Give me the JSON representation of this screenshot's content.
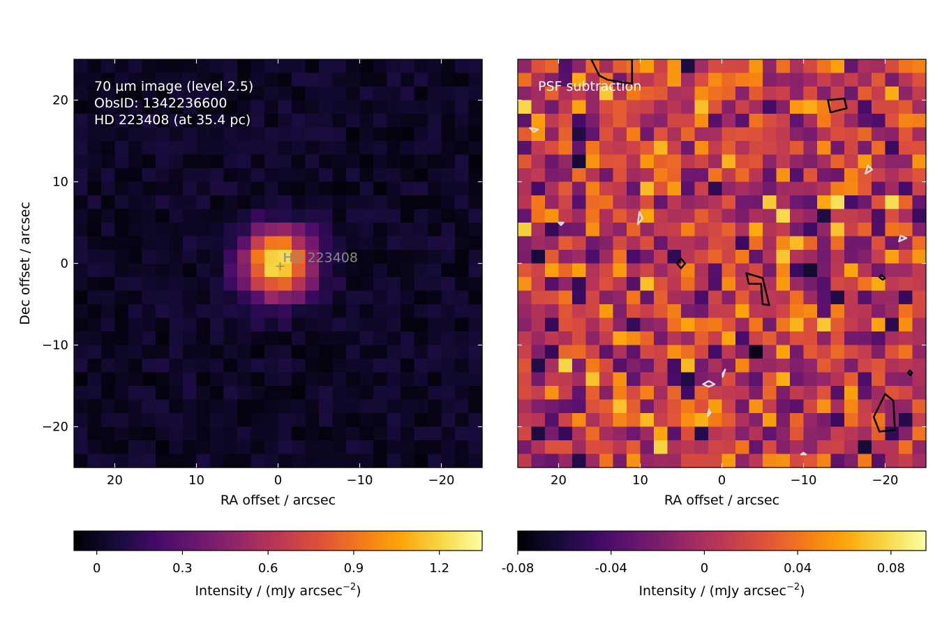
{
  "chart_data": [
    {
      "type": "heatmap",
      "annotations": [
        "70 µm image (level 2.5)",
        "ObsID: 1342236600",
        "HD 223408 (at 35.4 pc)"
      ],
      "source_label": "HD 223408",
      "xlabel": "RA offset / arcsec",
      "ylabel": "Dec offset / arcsec",
      "xlim": [
        25,
        -25
      ],
      "ylim": [
        -25,
        25
      ],
      "xticks": [
        20,
        10,
        0,
        -10,
        -20
      ],
      "xtick_labels": [
        "20",
        "10",
        "0",
        "−10",
        "−20"
      ],
      "yticks": [
        20,
        10,
        0,
        -10,
        -20
      ],
      "ytick_labels": [
        "20",
        "10",
        "0",
        "−10",
        "−20"
      ],
      "colormap": "inferno",
      "colorbar": {
        "label": "Intensity / (mJy arcsec",
        "label_sup": "−2",
        "label_close": ")",
        "vmin": -0.08,
        "vmax": 1.35,
        "ticks": [
          0,
          0.3,
          0.6,
          0.9,
          1.2
        ],
        "tick_labels": [
          "0",
          "0.3",
          "0.6",
          "0.9",
          "1.2"
        ]
      },
      "source": {
        "x": 0,
        "y": 0,
        "peak": 1.3,
        "sigma_arcsec": 2.9
      }
    },
    {
      "type": "heatmap",
      "annotations": [
        "PSF subtraction"
      ],
      "xlabel": "RA offset / arcsec",
      "xlim": [
        25,
        -25
      ],
      "ylim": [
        -25,
        25
      ],
      "xticks": [
        20,
        10,
        0,
        -10,
        -20
      ],
      "xtick_labels": [
        "20",
        "10",
        "0",
        "−10",
        "−20"
      ],
      "colormap": "inferno",
      "colorbar": {
        "label": "Intensity / (mJy arcsec",
        "label_sup": "−2",
        "label_close": ")",
        "vmin": -0.08,
        "vmax": 0.095,
        "ticks": [
          -0.08,
          -0.04,
          0,
          0.04,
          0.08
        ],
        "tick_labels": [
          "-0.08",
          "-0.04",
          "0",
          "0.04",
          "0.08"
        ]
      },
      "positive_contours": [
        [
          [
            16,
            25
          ],
          [
            15,
            23
          ],
          [
            14,
            22.5
          ],
          [
            11,
            22
          ],
          [
            11,
            25
          ]
        ],
        [
          [
            -13,
            20
          ],
          [
            -15,
            20.2
          ],
          [
            -15.3,
            19
          ],
          [
            -13.3,
            18.5
          ]
        ],
        [
          [
            5,
            0.6
          ],
          [
            4.5,
            0
          ],
          [
            5,
            -0.6
          ],
          [
            5.5,
            0
          ]
        ],
        [
          [
            -3,
            -1.2
          ],
          [
            -5,
            -1.8
          ],
          [
            -5.8,
            -5.1
          ],
          [
            -5,
            -5
          ],
          [
            -4.8,
            -2.5
          ],
          [
            -3.3,
            -2.5
          ]
        ],
        [
          [
            -19.5,
            -1.4
          ],
          [
            -20,
            -1.8
          ],
          [
            -19.7,
            -2
          ],
          [
            -19.3,
            -1.7
          ]
        ],
        [
          [
            -23,
            -13.1
          ],
          [
            -23.3,
            -13.4
          ],
          [
            -23.1,
            -13.7
          ],
          [
            -22.8,
            -13.4
          ]
        ],
        [
          [
            -20,
            -16
          ],
          [
            -21,
            -16.8
          ],
          [
            -21.2,
            -20.4
          ],
          [
            -19.3,
            -20.6
          ],
          [
            -18.6,
            -18.8
          ]
        ]
      ],
      "negative_contours": [
        [
          [
            23.5,
            16.6
          ],
          [
            22.5,
            16.4
          ],
          [
            23,
            16.1
          ]
        ],
        [
          [
            -17.9,
            12
          ],
          [
            -18.4,
            11.5
          ],
          [
            -17.6,
            11
          ]
        ],
        [
          [
            20,
            5
          ],
          [
            19.4,
            5
          ],
          [
            19.7,
            4.7
          ]
        ],
        [
          [
            10.1,
            6.3
          ],
          [
            9.7,
            5.5
          ],
          [
            10.3,
            4.8
          ]
        ],
        [
          [
            -21.9,
            3.4
          ],
          [
            -22.6,
            3.1
          ],
          [
            -21.7,
            2.7
          ]
        ],
        [
          [
            -0.1,
            -13.5
          ],
          [
            -0.4,
            -13
          ],
          [
            -0.1,
            -13.9
          ]
        ],
        [
          [
            2.3,
            -14.8
          ],
          [
            1.6,
            -14.4
          ],
          [
            0.9,
            -14.8
          ],
          [
            1.6,
            -15.1
          ]
        ],
        [
          [
            1.6,
            -17.9
          ],
          [
            1.4,
            -18.3
          ],
          [
            1.7,
            -18.7
          ]
        ],
        [
          [
            -10,
            -23.2
          ],
          [
            -10.3,
            -23.4
          ],
          [
            -9.7,
            -23.4
          ]
        ]
      ]
    }
  ]
}
